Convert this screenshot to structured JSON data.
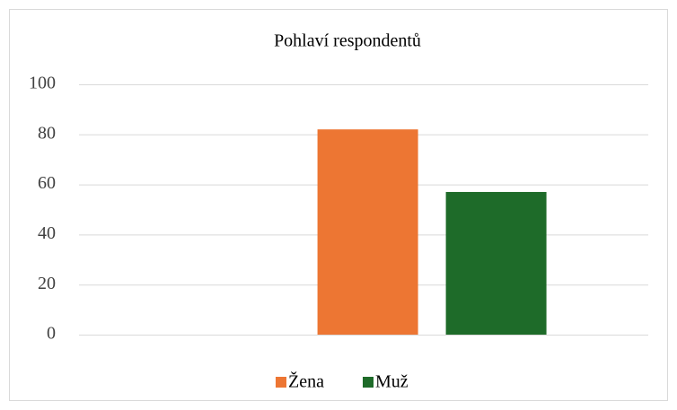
{
  "chart_data": {
    "type": "bar",
    "title": "Pohlaví respondentů",
    "categories": [
      null
    ],
    "series": [
      {
        "name": "Žena",
        "color": "#ed7633",
        "values": [
          82
        ]
      },
      {
        "name": "Muž",
        "color": "#1e6b29",
        "values": [
          57
        ]
      }
    ],
    "ylim": [
      0,
      100
    ],
    "yticks": [
      0,
      20,
      40,
      60,
      80,
      100
    ],
    "grid": true,
    "legend": "bottom"
  }
}
